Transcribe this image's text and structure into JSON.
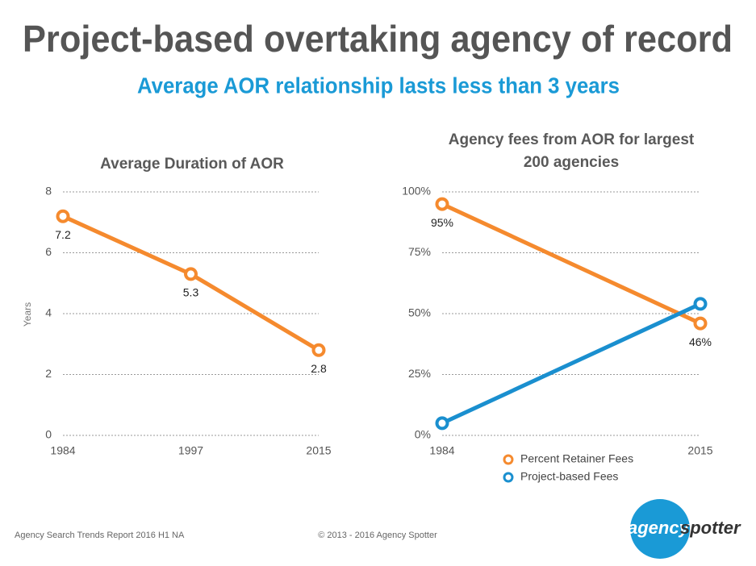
{
  "title": "Project-based overtaking agency of record",
  "subtitle": "Average AOR relationship lasts less than 3 years",
  "chart_data": [
    {
      "type": "line",
      "title": "Average Duration of AOR",
      "ylabel": "Years",
      "categories": [
        "1984",
        "1997",
        "2015"
      ],
      "series": [
        {
          "name": "Average Duration",
          "color": "#f58a2e",
          "values": [
            7.2,
            5.3,
            2.8
          ]
        }
      ],
      "ylim": [
        0,
        8
      ],
      "yticks": [
        0,
        2,
        4,
        6,
        8
      ],
      "grid": true,
      "legend": false,
      "data_labels": true
    },
    {
      "type": "line",
      "title": "Agency fees from AOR for largest 200 agencies",
      "categories": [
        "1984",
        "2015"
      ],
      "series": [
        {
          "name": "Percent Retainer Fees",
          "color": "#f58a2e",
          "values": [
            95,
            46
          ],
          "value_labels": [
            "95%",
            "46%"
          ]
        },
        {
          "name": "Project-based Fees",
          "color": "#1a8fcf",
          "values": [
            5,
            54
          ]
        }
      ],
      "ylim": [
        0,
        100
      ],
      "yticks": [
        {
          "value": 0,
          "label": "0%"
        },
        {
          "value": 25,
          "label": "25%"
        },
        {
          "value": 50,
          "label": "50%"
        },
        {
          "value": 75,
          "label": "75%"
        },
        {
          "value": 100,
          "label": "100%"
        }
      ],
      "grid": true,
      "legend": true,
      "data_labels": true
    }
  ],
  "footer": {
    "source": "Agency Search Trends Report 2016 H1 NA",
    "copyright": "© 2013 - 2016 Agency Spotter"
  },
  "logo": {
    "part1": "agency",
    "part2": "spotter"
  }
}
